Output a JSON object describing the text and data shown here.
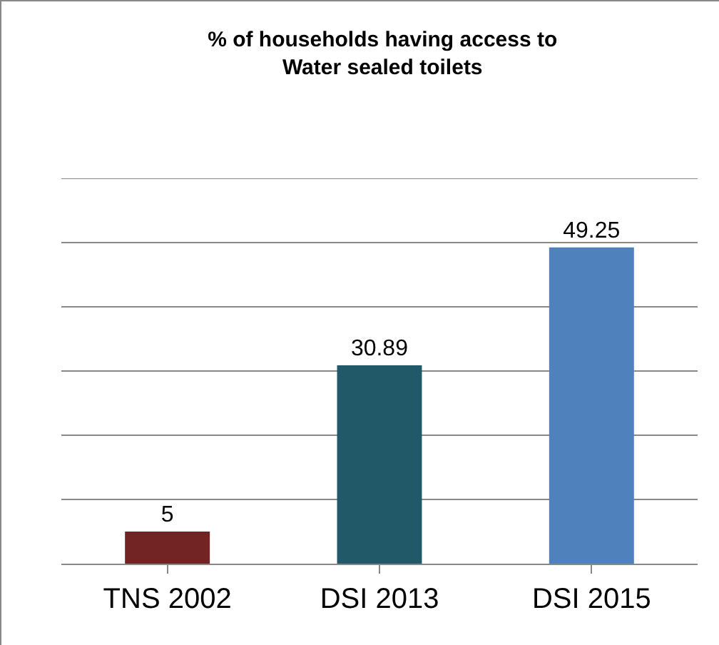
{
  "chart_data": {
    "type": "bar",
    "title": "% of households having access to Water sealed toilets",
    "categories": [
      "TNS 2002",
      "DSI 2013",
      "DSI 2015"
    ],
    "values": [
      5,
      30.89,
      49.25
    ],
    "colors": [
      "#722424",
      "#215968",
      "#4f81bd"
    ],
    "ylim": [
      0,
      60
    ],
    "yticks": [
      {
        "value": 0,
        "label": null
      },
      {
        "value": 10,
        "label": null
      },
      {
        "value": 20,
        "label": null
      },
      {
        "value": 30,
        "label": null
      },
      {
        "value": 40,
        "label": null
      },
      {
        "value": 50,
        "label": null
      },
      {
        "value": 60,
        "label": null
      }
    ],
    "grid": "y",
    "tick_labels": "x",
    "data_labels": true
  }
}
